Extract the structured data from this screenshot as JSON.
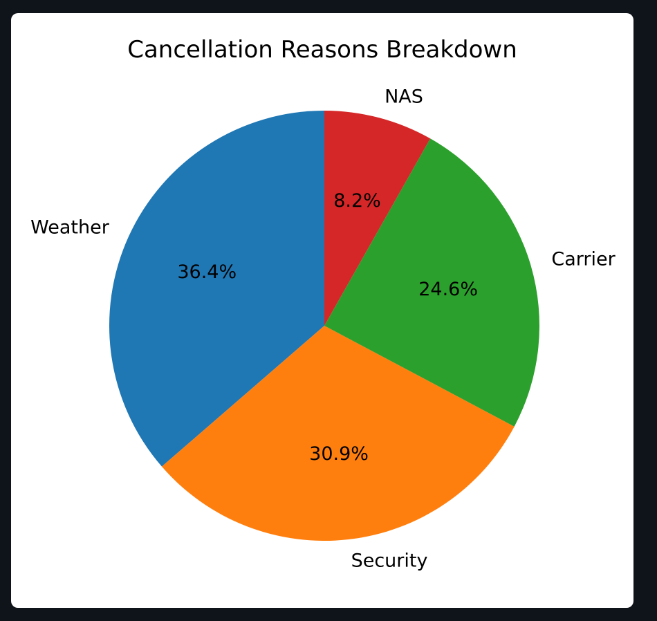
{
  "chart_data": {
    "type": "pie",
    "title": "Cancellation Reasons Breakdown",
    "start_angle_deg": 90,
    "direction": "counterclockwise",
    "slices": [
      {
        "label": "Weather",
        "value": 36.4,
        "pct_label": "36.4%",
        "color": "#1f77b4"
      },
      {
        "label": "Security",
        "value": 30.9,
        "pct_label": "30.9%",
        "color": "#ff7f0e"
      },
      {
        "label": "Carrier",
        "value": 24.6,
        "pct_label": "24.6%",
        "color": "#2ca02c"
      },
      {
        "label": "NAS",
        "value": 8.2,
        "pct_label": "8.2%",
        "color": "#d62728"
      }
    ]
  }
}
